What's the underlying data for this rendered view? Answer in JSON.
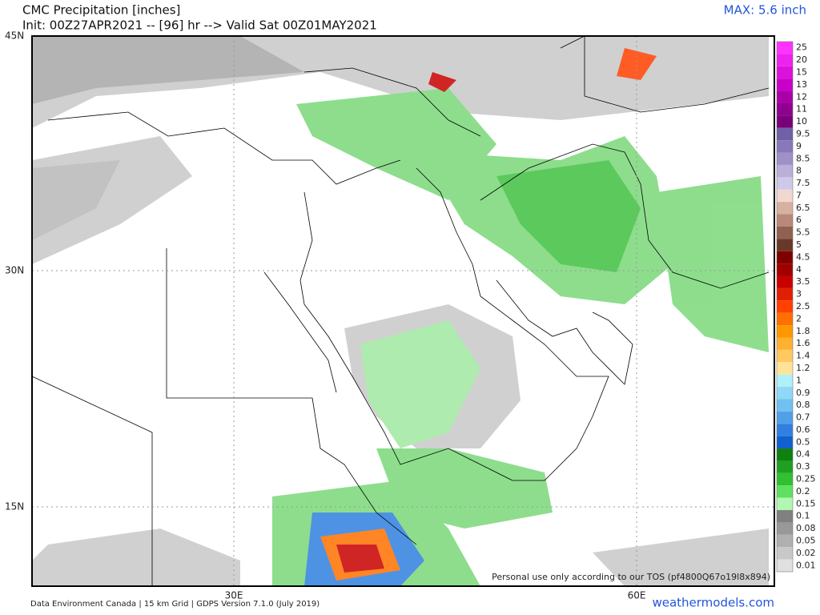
{
  "header": {
    "title": "CMC Precipitation [inches]",
    "subtitle": "Init: 00Z27APR2021 -- [96] hr --> Valid Sat 00Z01MAY2021",
    "max": "MAX: 5.6 inch"
  },
  "axes": {
    "lat": [
      "45N",
      "30N",
      "15N"
    ],
    "lon": [
      "30E",
      "60E"
    ]
  },
  "legend": [
    {
      "label": "25",
      "color": "#ff33ff"
    },
    {
      "label": "20",
      "color": "#ee22ee"
    },
    {
      "label": "15",
      "color": "#dd11dd"
    },
    {
      "label": "13",
      "color": "#c800c8"
    },
    {
      "label": "12",
      "color": "#aa00aa"
    },
    {
      "label": "11",
      "color": "#900090"
    },
    {
      "label": "10",
      "color": "#780078"
    },
    {
      "label": "9.5",
      "color": "#7060a8"
    },
    {
      "label": "9",
      "color": "#8878b8"
    },
    {
      "label": "8.5",
      "color": "#a090c8"
    },
    {
      "label": "8",
      "color": "#b8b0d8"
    },
    {
      "label": "7.5",
      "color": "#d0c8e8"
    },
    {
      "label": "7",
      "color": "#f0d8d0"
    },
    {
      "label": "6.5",
      "color": "#d8b0a0"
    },
    {
      "label": "6",
      "color": "#b88878"
    },
    {
      "label": "5.5",
      "color": "#906050"
    },
    {
      "label": "5",
      "color": "#683828"
    },
    {
      "label": "4.5",
      "color": "#800000"
    },
    {
      "label": "4",
      "color": "#a00000"
    },
    {
      "label": "3.5",
      "color": "#c80000"
    },
    {
      "label": "3",
      "color": "#e02000"
    },
    {
      "label": "2.5",
      "color": "#ff4000"
    },
    {
      "label": "2",
      "color": "#ff7000"
    },
    {
      "label": "1.8",
      "color": "#ff9800"
    },
    {
      "label": "1.6",
      "color": "#ffb030"
    },
    {
      "label": "1.4",
      "color": "#ffc860"
    },
    {
      "label": "1.2",
      "color": "#ffe498"
    },
    {
      "label": "1",
      "color": "#b0f0f8"
    },
    {
      "label": "0.9",
      "color": "#90d8f8"
    },
    {
      "label": "0.8",
      "color": "#70c0f0"
    },
    {
      "label": "0.7",
      "color": "#50a0e8"
    },
    {
      "label": "0.6",
      "color": "#3080e0"
    },
    {
      "label": "0.5",
      "color": "#1060d0"
    },
    {
      "label": "0.4",
      "color": "#108010"
    },
    {
      "label": "0.3",
      "color": "#20a020"
    },
    {
      "label": "0.25",
      "color": "#30c030"
    },
    {
      "label": "0.2",
      "color": "#60e060"
    },
    {
      "label": "0.15",
      "color": "#b0f8b0"
    },
    {
      "label": "0.1",
      "color": "#808080"
    },
    {
      "label": "0.08",
      "color": "#989898"
    },
    {
      "label": "0.05",
      "color": "#b0b0b0"
    },
    {
      "label": "0.02",
      "color": "#c8c8c8"
    },
    {
      "label": "0.01",
      "color": "#e0e0e0"
    }
  ],
  "watermark": "Personal use only according to our TOS (pf4800Q67o19l8x894)",
  "footer": {
    "credit": "Data Environment Canada | 15 km Grid | GDPS Version 7.1.0 (July 2019)",
    "site": "weathermodels.com"
  }
}
